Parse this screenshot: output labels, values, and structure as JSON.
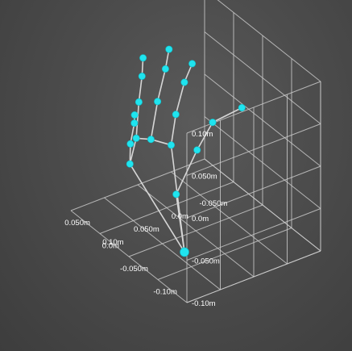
{
  "chart_data": {
    "type": "scatter3d",
    "title": "",
    "units": "m",
    "z_axis": {
      "ticks": [
        {
          "value": 0.1,
          "label": "0.10m"
        },
        {
          "value": 0.05,
          "label": "0.050m"
        },
        {
          "value": 0.0,
          "label": "0.0m"
        },
        {
          "value": -0.05,
          "label": "-0.050m"
        },
        {
          "value": -0.1,
          "label": "-0.10m"
        }
      ]
    },
    "x_axis": {
      "ticks": [
        {
          "value": 0.1,
          "label": "0.10m"
        },
        {
          "value": 0.05,
          "label": "0.050m"
        },
        {
          "value": 0.0,
          "label": "0.0m"
        },
        {
          "value": -0.05,
          "label": "-0.050m"
        }
      ]
    },
    "y_axis": {
      "ticks": [
        {
          "value": 0.05,
          "label": "0.050m"
        },
        {
          "value": 0.0,
          "label": "0.0m"
        },
        {
          "value": -0.05,
          "label": "-0.050m"
        },
        {
          "value": -0.1,
          "label": "-0.10m"
        }
      ]
    },
    "series": [
      {
        "color": "#1fe4ef",
        "points": [
          {
            "x": 0.062,
            "y": -0.052,
            "z": -0.078
          },
          {
            "x": 0.025,
            "y": 0.005,
            "z": -0.052
          },
          {
            "x": -0.035,
            "y": 0.038,
            "z": -0.036
          },
          {
            "x": -0.06,
            "y": 0.04,
            "z": -0.012
          },
          {
            "x": -0.095,
            "y": 0.03,
            "z": 0.0
          },
          {
            "x": 0.002,
            "y": 0.04,
            "z": -0.02
          },
          {
            "x": -0.018,
            "y": 0.055,
            "z": 0.002
          },
          {
            "x": -0.035,
            "y": 0.06,
            "z": 0.032
          },
          {
            "x": -0.045,
            "y": 0.058,
            "z": 0.052
          },
          {
            "x": 0.028,
            "y": 0.045,
            "z": -0.008
          },
          {
            "x": 0.012,
            "y": 0.052,
            "z": 0.028
          },
          {
            "x": -0.005,
            "y": 0.058,
            "z": 0.058
          },
          {
            "x": -0.012,
            "y": 0.06,
            "z": 0.078
          },
          {
            "x": 0.05,
            "y": 0.045,
            "z": 0.0
          },
          {
            "x": 0.04,
            "y": 0.052,
            "z": 0.036
          },
          {
            "x": 0.03,
            "y": 0.058,
            "z": 0.06
          },
          {
            "x": 0.025,
            "y": 0.062,
            "z": 0.078
          },
          {
            "x": 0.062,
            "y": 0.042,
            "z": -0.025
          },
          {
            "x": 0.05,
            "y": 0.055,
            "z": -0.012
          },
          {
            "x": 0.038,
            "y": 0.062,
            "z": 0.005
          },
          {
            "x": 0.035,
            "y": 0.065,
            "z": 0.012
          }
        ],
        "connections": [
          [
            0,
            1
          ],
          [
            1,
            2
          ],
          [
            2,
            3
          ],
          [
            3,
            4
          ],
          [
            0,
            5
          ],
          [
            5,
            6
          ],
          [
            6,
            7
          ],
          [
            7,
            8
          ],
          [
            5,
            9
          ],
          [
            9,
            10
          ],
          [
            10,
            11
          ],
          [
            11,
            12
          ],
          [
            9,
            13
          ],
          [
            13,
            14
          ],
          [
            14,
            15
          ],
          [
            15,
            16
          ],
          [
            13,
            17
          ],
          [
            17,
            18
          ],
          [
            18,
            19
          ],
          [
            19,
            20
          ],
          [
            0,
            17
          ]
        ]
      }
    ]
  }
}
